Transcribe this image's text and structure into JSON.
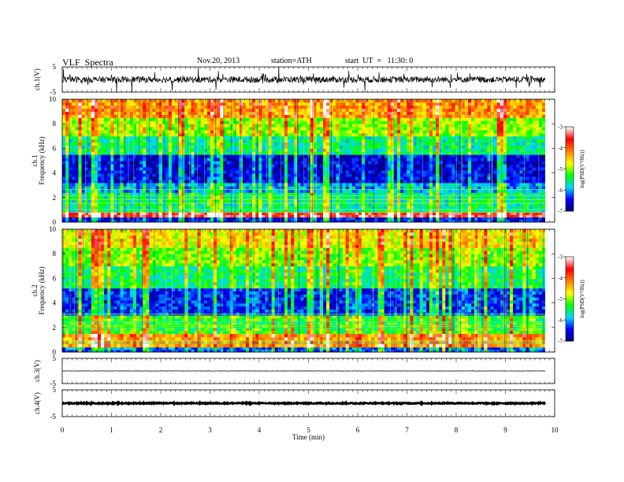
{
  "header": {
    "title": "VLF  Spectra",
    "date": "Nov.20, 2013",
    "station": "station=ATH",
    "start": "start  UT  =   11:30: 0"
  },
  "chart_data": [
    {
      "type": "line",
      "name": "ch.1(V) waveform",
      "ylabel": "ch.1(V)",
      "ylim": [
        -5,
        5
      ],
      "yticks": [
        "5",
        "-5"
      ],
      "xlim": [
        0,
        10
      ],
      "description_values": {
        "baseline": 0,
        "noise_amplitude": 2.5
      }
    },
    {
      "type": "heatmap",
      "name": "ch.1 spectrogram",
      "ylabel": [
        "ch.1",
        "Frequency  (kHz)"
      ],
      "ylim": [
        0,
        10
      ],
      "yticks": [
        "0",
        "2",
        "4",
        "6",
        "8",
        "10"
      ],
      "xlim": [
        0,
        10
      ],
      "colorbar": {
        "label": "log(PSD(V²/Hz))",
        "range": [
          -7,
          -3
        ],
        "ticks": [
          "-3",
          "-4",
          "-5",
          "-6",
          "-7"
        ],
        "colors": [
          "#000070",
          "#0000ff",
          "#00d8ff",
          "#00ff00",
          "#ffff00",
          "#ff8000",
          "#ff0000",
          "#ffffff"
        ]
      },
      "bands": [
        {
          "fmin": 0.0,
          "fmax": 0.4,
          "level": -6.5
        },
        {
          "fmin": 0.4,
          "fmax": 0.8,
          "level": -3.5
        },
        {
          "fmin": 0.8,
          "fmax": 2.4,
          "level": -5.6
        },
        {
          "fmin": 2.4,
          "fmax": 3.2,
          "level": -6.0
        },
        {
          "fmin": 3.2,
          "fmax": 5.5,
          "level": -6.6
        },
        {
          "fmin": 5.5,
          "fmax": 7.0,
          "level": -5.6
        },
        {
          "fmin": 7.0,
          "fmax": 8.5,
          "level": -5.0
        },
        {
          "fmin": 8.5,
          "fmax": 10.0,
          "level": -4.3
        }
      ]
    },
    {
      "type": "heatmap",
      "name": "ch.2 spectrogram",
      "ylabel": [
        "ch.2",
        "Frequency  (kHz)"
      ],
      "ylim": [
        0,
        10
      ],
      "yticks": [
        "0",
        "2",
        "4",
        "6",
        "8",
        "10"
      ],
      "xlim": [
        0,
        10
      ],
      "colorbar": {
        "label": "log(PSD(V²/Hz))",
        "range": [
          -7,
          -3
        ],
        "ticks": [
          "-3",
          "-4",
          "-5",
          "-6",
          "-7"
        ],
        "colors": [
          "#000070",
          "#0000ff",
          "#00d8ff",
          "#00ff00",
          "#ffff00",
          "#ff8000",
          "#ff0000",
          "#ffffff"
        ]
      },
      "bands": [
        {
          "fmin": 0.0,
          "fmax": 0.4,
          "level": -6.2
        },
        {
          "fmin": 0.4,
          "fmax": 1.5,
          "level": -4.3
        },
        {
          "fmin": 1.5,
          "fmax": 3.0,
          "level": -5.3
        },
        {
          "fmin": 3.0,
          "fmax": 5.2,
          "level": -6.4
        },
        {
          "fmin": 5.2,
          "fmax": 7.0,
          "level": -5.5
        },
        {
          "fmin": 7.0,
          "fmax": 8.5,
          "level": -5.1
        },
        {
          "fmin": 8.5,
          "fmax": 10.0,
          "level": -4.7
        }
      ]
    },
    {
      "type": "line",
      "name": "ch.3(V) waveform",
      "ylabel": "ch.3(V)",
      "ylim": [
        -5,
        5
      ],
      "yticks": [
        "5",
        "-5"
      ],
      "xlim": [
        0,
        10
      ],
      "description_values": {
        "baseline": 0,
        "noise_amplitude": 0.15
      }
    },
    {
      "type": "line",
      "name": "ch.4(V) waveform",
      "ylabel": "ch.4(V)",
      "ylim": [
        -5,
        5
      ],
      "yticks": [
        "5",
        "-5"
      ],
      "xlim": [
        0,
        10
      ],
      "xlabel": "Time  (min)",
      "xticks": [
        "0",
        "1",
        "2",
        "3",
        "4",
        "5",
        "6",
        "7",
        "8",
        "9",
        "10"
      ],
      "description_values": {
        "baseline": 0,
        "noise_amplitude": 0.4
      }
    }
  ]
}
